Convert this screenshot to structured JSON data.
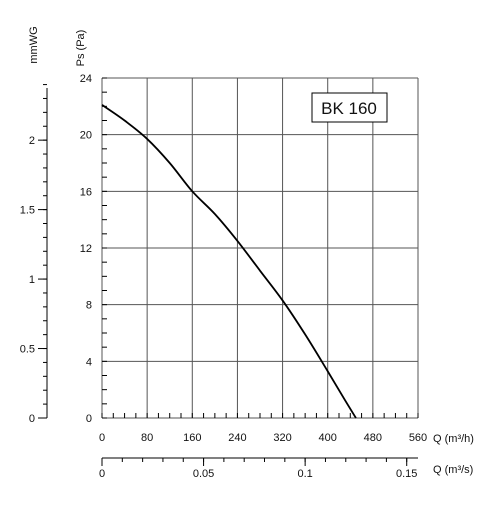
{
  "chart_data": {
    "type": "line",
    "model_label": "BK 160",
    "grid": true,
    "primary_y_axis": {
      "label": "Ps (Pa)",
      "ticks": [
        "0",
        "4",
        "8",
        "12",
        "16",
        "20",
        "24"
      ],
      "tick_values": [
        0,
        4,
        8,
        12,
        16,
        20,
        24
      ],
      "range": [
        0,
        24
      ]
    },
    "secondary_y_axis": {
      "label": "mmWG",
      "ticks": [
        "0",
        "0.5",
        "1",
        "1.5",
        "2"
      ],
      "tick_values": [
        0,
        0.5,
        1,
        1.5,
        2
      ]
    },
    "primary_x_axis": {
      "label": "Q (m³/h)",
      "ticks": [
        "0",
        "80",
        "160",
        "240",
        "320",
        "400",
        "480",
        "560"
      ],
      "tick_values": [
        0,
        80,
        160,
        240,
        320,
        400,
        480,
        560
      ],
      "range": [
        0,
        560
      ]
    },
    "secondary_x_axis": {
      "label": "Q (m³/s)",
      "ticks": [
        "0",
        "0.05",
        "0.1",
        "0.15"
      ],
      "tick_values": [
        0,
        0.05,
        0.1,
        0.15
      ]
    },
    "series": [
      {
        "x": [
          0,
          40,
          80,
          120,
          160,
          200,
          240,
          280,
          320,
          360,
          400,
          430,
          450
        ],
        "y": [
          22.1,
          21.0,
          19.7,
          18.0,
          16.0,
          14.4,
          12.5,
          10.4,
          8.3,
          5.9,
          3.3,
          1.3,
          0
        ]
      }
    ]
  }
}
